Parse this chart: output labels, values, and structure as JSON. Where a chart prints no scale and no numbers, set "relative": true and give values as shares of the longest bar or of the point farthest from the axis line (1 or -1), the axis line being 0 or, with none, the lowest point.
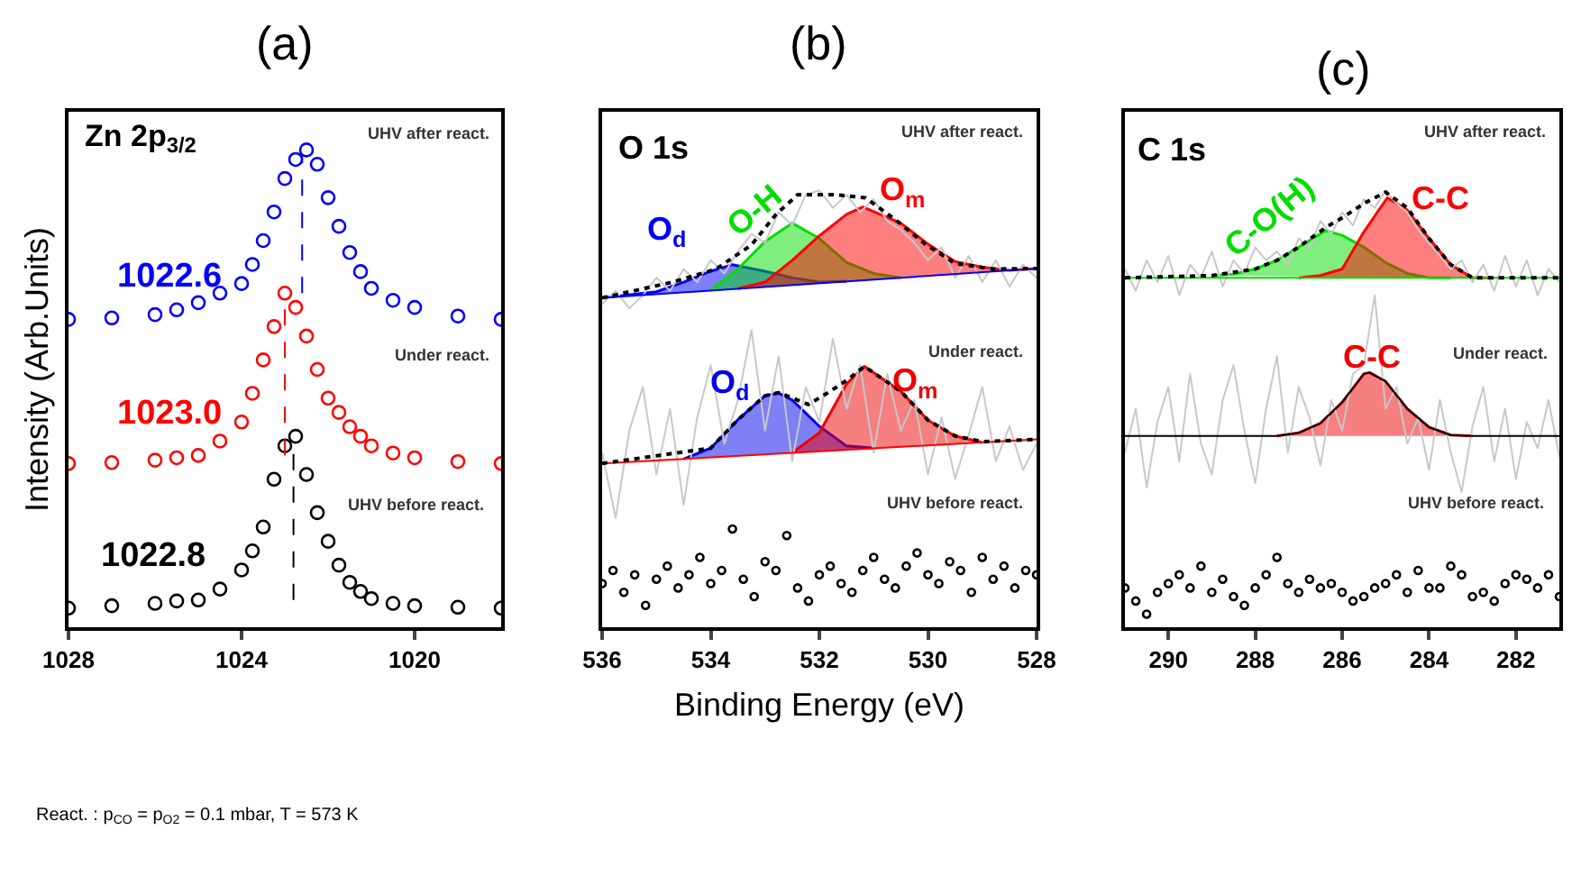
{
  "chart_data": [
    {
      "type": "scatter",
      "title": "(a)",
      "ylabel": "Intensity (Arb.Units)",
      "relative": true,
      "tick_labels": "x",
      "xlim": [
        1028,
        1018
      ],
      "xticks": [
        1028,
        1024,
        1020
      ],
      "series": [
        {
          "marker": "circle",
          "color": "#0000ff",
          "x": [
            1028,
            1027,
            1026,
            1025.5,
            1025,
            1024.5,
            1024,
            1023.75,
            1023.5,
            1023.25,
            1023,
            1022.75,
            1022.5,
            1022.25,
            1022,
            1021.75,
            1021.5,
            1021.25,
            1021,
            1020.5,
            1020,
            1019,
            1018
          ],
          "values": [
            0.645,
            0.648,
            0.655,
            0.665,
            0.68,
            0.7,
            0.72,
            0.76,
            0.81,
            0.87,
            0.94,
            0.98,
            1.0,
            0.97,
            0.9,
            0.84,
            0.785,
            0.745,
            0.71,
            0.685,
            0.67,
            0.652,
            0.645
          ]
        },
        {
          "marker": "circle",
          "color": "#ff0000",
          "x": [
            1028,
            1027,
            1026,
            1025.5,
            1025,
            1024.5,
            1024,
            1023.75,
            1023.5,
            1023.25,
            1023,
            1022.75,
            1022.5,
            1022.25,
            1022,
            1021.75,
            1021.5,
            1021.25,
            1021,
            1020.5,
            1020,
            1019,
            1018
          ],
          "values": [
            0.343,
            0.345,
            0.35,
            0.355,
            0.36,
            0.39,
            0.43,
            0.49,
            0.56,
            0.63,
            0.7,
            0.67,
            0.61,
            0.54,
            0.48,
            0.45,
            0.42,
            0.4,
            0.38,
            0.365,
            0.355,
            0.347,
            0.343
          ]
        },
        {
          "marker": "circle",
          "color": "#000000",
          "x": [
            1028,
            1027,
            1026,
            1025.5,
            1025,
            1024.5,
            1024,
            1023.75,
            1023.5,
            1023.25,
            1023,
            1022.75,
            1022.5,
            1022.25,
            1022,
            1021.75,
            1021.5,
            1021.25,
            1021,
            1020.5,
            1020,
            1019,
            1018
          ],
          "values": [
            0.04,
            0.045,
            0.05,
            0.055,
            0.057,
            0.08,
            0.12,
            0.16,
            0.21,
            0.31,
            0.38,
            0.4,
            0.32,
            0.24,
            0.18,
            0.13,
            0.094,
            0.075,
            0.06,
            0.05,
            0.045,
            0.042,
            0.04
          ]
        },
        {
          "type": "line",
          "line_style": "dashed",
          "color": "#0000ff",
          "x": [
            1022.6,
            1022.6
          ],
          "values": [
            0.7,
            0.99
          ]
        },
        {
          "type": "line",
          "line_style": "dashed",
          "color": "#ff0000",
          "x": [
            1023.0,
            1023.0
          ],
          "values": [
            0.36,
            0.7
          ]
        },
        {
          "type": "line",
          "line_style": "dashed",
          "color": "#000000",
          "x": [
            1022.8,
            1022.8
          ],
          "values": [
            0.057,
            0.39
          ]
        }
      ],
      "annotations": [
        "Zn 2p$_{3/2}$",
        "UHV after react.",
        "1022.6",
        "Under react.",
        "1023.0",
        "UHV before react.",
        "1022.8",
        "React. : p$_{CO}$ = p$_{O2}$ = 0.1 mbar, T = 573 K"
      ]
    },
    {
      "type": "line",
      "title": "(b)",
      "xlabel": "Binding Energy (eV)",
      "relative": true,
      "tick_labels": "x",
      "xlim": [
        536,
        528
      ],
      "xticks": [
        536,
        534,
        532,
        530,
        528
      ],
      "series": [
        {
          "type": "area",
          "color": "#0000ff",
          "x": [
            536,
            535,
            534.5,
            534,
            533.6,
            533,
            532.5,
            532,
            531.5
          ],
          "values": [
            0.754,
            0.768,
            0.79,
            0.815,
            0.83,
            0.815,
            0.8,
            0.79,
            0.792
          ]
        },
        {
          "type": "area",
          "color": "#00dd00",
          "x": [
            534,
            533.5,
            533,
            532.5,
            532,
            531.5,
            531,
            530.5
          ],
          "values": [
            0.771,
            0.82,
            0.883,
            0.925,
            0.89,
            0.835,
            0.81,
            0.8
          ]
        },
        {
          "type": "area",
          "color": "#ff0000",
          "x": [
            533.5,
            533,
            532.5,
            532,
            531.5,
            531.2,
            530.5,
            530,
            529.5,
            529,
            528.5,
            528
          ],
          "values": [
            0.775,
            0.79,
            0.84,
            0.896,
            0.945,
            0.962,
            0.925,
            0.877,
            0.837,
            0.824,
            0.817,
            0.821
          ]
        },
        {
          "type": "area",
          "color": "#0000ee",
          "x": [
            534.5,
            534,
            533.5,
            533,
            532.75,
            532.5,
            532,
            531.5,
            531
          ],
          "values": [
            0.385,
            0.41,
            0.475,
            0.53,
            0.536,
            0.52,
            0.46,
            0.415,
            0.41
          ]
        },
        {
          "type": "area",
          "color": "#ee0000",
          "x": [
            532.5,
            532,
            531.5,
            531.17,
            530.5,
            530,
            529.5,
            529
          ],
          "values": [
            0.399,
            0.445,
            0.557,
            0.597,
            0.54,
            0.474,
            0.438,
            0.423
          ]
        },
        {
          "color": "#c8c8c8",
          "x": [
            536,
            535.75,
            535.5,
            535.25,
            535,
            534.75,
            534.5,
            534.25,
            534,
            533.75,
            533.5,
            533.25,
            533,
            532.75,
            532.5,
            532.25,
            532,
            531.75,
            531.5,
            531.25,
            531,
            530.75,
            530.5,
            530.25,
            530,
            529.75,
            529.5,
            529.25,
            529,
            528.75,
            528.5,
            528.25,
            528
          ],
          "values": [
            0.74,
            0.77,
            0.73,
            0.76,
            0.8,
            0.77,
            0.82,
            0.79,
            0.84,
            0.81,
            0.86,
            0.9,
            0.88,
            0.95,
            0.92,
            0.99,
            1.0,
            0.96,
            0.99,
            0.95,
            0.98,
            0.93,
            0.91,
            0.88,
            0.84,
            0.87,
            0.8,
            0.85,
            0.79,
            0.84,
            0.78,
            0.83,
            0.8
          ]
        },
        {
          "color": "#c8c8c8",
          "x": [
            536,
            535.75,
            535.5,
            535.25,
            535,
            534.75,
            534.5,
            534.25,
            534,
            533.75,
            533.5,
            533.25,
            533,
            532.75,
            532.5,
            532.25,
            532,
            531.75,
            531.5,
            531.25,
            531,
            530.75,
            530.5,
            530.25,
            530,
            529.75,
            529.5,
            529.25,
            529,
            528.75,
            528.5,
            528.25,
            528
          ],
          "values": [
            0.4,
            0.25,
            0.45,
            0.55,
            0.35,
            0.5,
            0.28,
            0.48,
            0.6,
            0.42,
            0.52,
            0.68,
            0.45,
            0.62,
            0.38,
            0.55,
            0.47,
            0.66,
            0.5,
            0.6,
            0.4,
            0.58,
            0.45,
            0.52,
            0.35,
            0.48,
            0.34,
            0.44,
            0.55,
            0.38,
            0.46,
            0.36,
            0.42
          ]
        },
        {
          "color": "#0000ff",
          "x": [
            536,
            528
          ],
          "values": [
            0.754,
            0.821
          ]
        },
        {
          "color": "#ff0000",
          "x": [
            536,
            528
          ],
          "values": [
            0.375,
            0.43
          ]
        },
        {
          "line_style": "dotted",
          "color": "#000000",
          "x": [
            536,
            534.7,
            533.9,
            533.25,
            532.8,
            532.4,
            531.7,
            531.15,
            530.6,
            530.05,
            529.5,
            528.8,
            528
          ],
          "values": [
            0.754,
            0.79,
            0.82,
            0.875,
            0.945,
            0.99,
            0.99,
            0.983,
            0.933,
            0.877,
            0.833,
            0.82,
            0.821
          ]
        },
        {
          "line_style": "dotted",
          "color": "#000000",
          "x": [
            536,
            534,
            533.5,
            533,
            532.75,
            532.5,
            532.2,
            531.8,
            531.5,
            531.17,
            530.5,
            530,
            529.5,
            529,
            528
          ],
          "values": [
            0.375,
            0.41,
            0.475,
            0.53,
            0.537,
            0.525,
            0.51,
            0.54,
            0.565,
            0.597,
            0.54,
            0.474,
            0.438,
            0.425,
            0.43
          ]
        },
        {
          "type": "scatter",
          "marker": "circle",
          "color": "#000000",
          "x": [
            536,
            535.8,
            535.6,
            535.4,
            535.2,
            535,
            534.8,
            534.6,
            534.4,
            534.2,
            534,
            533.8,
            533.6,
            533.4,
            533.2,
            533,
            532.8,
            532.6,
            532.4,
            532.2,
            532,
            531.8,
            531.6,
            531.4,
            531.2,
            531,
            530.8,
            530.6,
            530.4,
            530.2,
            530,
            529.8,
            529.6,
            529.4,
            529.2,
            529,
            528.8,
            528.6,
            528.4,
            528.2,
            528
          ],
          "values": [
            0.1,
            0.13,
            0.08,
            0.12,
            0.05,
            0.11,
            0.14,
            0.09,
            0.12,
            0.16,
            0.1,
            0.13,
            0.225,
            0.11,
            0.07,
            0.15,
            0.13,
            0.21,
            0.09,
            0.06,
            0.12,
            0.14,
            0.1,
            0.08,
            0.13,
            0.16,
            0.11,
            0.09,
            0.14,
            0.17,
            0.12,
            0.1,
            0.15,
            0.13,
            0.08,
            0.16,
            0.11,
            0.14,
            0.09,
            0.13,
            0.12
          ]
        }
      ],
      "annotations": [
        "O 1s",
        "UHV after react.",
        "O$_{d}$",
        "O-H",
        "O$_{m}$",
        "Under react.",
        "O$_{d}$",
        "O$_{m}$",
        "UHV before react."
      ]
    },
    {
      "type": "line",
      "title": "(c)",
      "relative": true,
      "tick_labels": "x",
      "xlim": [
        291,
        281
      ],
      "xticks": [
        290,
        288,
        286,
        284,
        282
      ],
      "series": [
        {
          "type": "area",
          "color": "#00dd00",
          "x": [
            289,
            288.5,
            288,
            287.5,
            287,
            286.38,
            286,
            285.5,
            285,
            284.5,
            284,
            283.5
          ],
          "values": [
            0.805,
            0.808,
            0.82,
            0.84,
            0.87,
            0.908,
            0.897,
            0.87,
            0.835,
            0.81,
            0.8,
            0.8
          ]
        },
        {
          "type": "area",
          "color": "#ff0000",
          "x": [
            287,
            286.5,
            286,
            285.5,
            284.96,
            284.5,
            284,
            283.5,
            283,
            282.5
          ],
          "values": [
            0.8,
            0.805,
            0.82,
            0.905,
            0.983,
            0.955,
            0.89,
            0.83,
            0.8,
            0.8
          ]
        },
        {
          "type": "area",
          "color": "#ee0000",
          "x": [
            287.5,
            287,
            286.5,
            286,
            285.5,
            285.37,
            285,
            284.5,
            284,
            283.5,
            283
          ],
          "values": [
            0.438,
            0.445,
            0.467,
            0.515,
            0.58,
            0.583,
            0.563,
            0.5,
            0.458,
            0.44,
            0.438
          ]
        },
        {
          "color": "#c8c8c8",
          "x": [
            291,
            290.75,
            290.5,
            290.25,
            290,
            289.75,
            289.5,
            289.25,
            289,
            288.75,
            288.5,
            288.25,
            288,
            287.75,
            287.5,
            287.25,
            287,
            286.75,
            286.5,
            286.25,
            286,
            285.75,
            285.5,
            285.25,
            285,
            284.75,
            284.5,
            284.25,
            284,
            283.75,
            283.5,
            283.25,
            283,
            282.75,
            282.5,
            282.25,
            282,
            281.75,
            281.5,
            281.25,
            281
          ],
          "values": [
            0.82,
            0.77,
            0.84,
            0.79,
            0.85,
            0.76,
            0.83,
            0.8,
            0.86,
            0.78,
            0.84,
            0.81,
            0.87,
            0.84,
            0.86,
            0.83,
            0.89,
            0.87,
            0.93,
            0.9,
            0.95,
            0.92,
            0.98,
            0.96,
            1.0,
            0.97,
            0.95,
            0.91,
            0.88,
            0.85,
            0.82,
            0.84,
            0.79,
            0.83,
            0.77,
            0.85,
            0.78,
            0.84,
            0.76,
            0.82,
            0.79
          ]
        },
        {
          "color": "#c8c8c8",
          "x": [
            291,
            290.75,
            290.5,
            290.25,
            290,
            289.75,
            289.5,
            289.25,
            289,
            288.75,
            288.5,
            288.25,
            288,
            287.75,
            287.5,
            287.25,
            287,
            286.75,
            286.5,
            286.25,
            286,
            285.75,
            285.5,
            285.25,
            285,
            284.75,
            284.5,
            284.25,
            284,
            283.75,
            283.5,
            283.25,
            283,
            282.75,
            282.5,
            282.25,
            282,
            281.75,
            281.5,
            281.25,
            281
          ],
          "values": [
            0.4,
            0.5,
            0.32,
            0.47,
            0.55,
            0.38,
            0.58,
            0.42,
            0.35,
            0.52,
            0.6,
            0.45,
            0.33,
            0.5,
            0.62,
            0.4,
            0.55,
            0.48,
            0.37,
            0.52,
            0.45,
            0.58,
            0.6,
            0.76,
            0.5,
            0.55,
            0.42,
            0.48,
            0.36,
            0.52,
            0.4,
            0.31,
            0.46,
            0.55,
            0.38,
            0.5,
            0.34,
            0.47,
            0.41,
            0.52,
            0.39
          ]
        },
        {
          "color": "#00dd00",
          "x": [
            291,
            281
          ],
          "values": [
            0.8,
            0.8
          ]
        },
        {
          "line_style": "dotted",
          "color": "#000000",
          "x": [
            291,
            289,
            288,
            287.5,
            287,
            286.38,
            286,
            285.5,
            285,
            284.5,
            284,
            283.5,
            283,
            281
          ],
          "values": [
            0.8,
            0.805,
            0.82,
            0.84,
            0.87,
            0.915,
            0.937,
            0.97,
            0.996,
            0.96,
            0.89,
            0.83,
            0.8,
            0.8
          ]
        },
        {
          "line_style": "solid",
          "color": "#000000",
          "x": [
            291,
            287.5,
            287,
            286.5,
            286,
            285.5,
            285.37,
            285,
            284.5,
            284,
            283.5,
            283,
            281
          ],
          "values": [
            0.438,
            0.438,
            0.445,
            0.467,
            0.515,
            0.58,
            0.583,
            0.563,
            0.5,
            0.458,
            0.44,
            0.438,
            0.438
          ]
        },
        {
          "type": "scatter",
          "marker": "circle",
          "color": "#000000",
          "x": [
            291,
            290.75,
            290.5,
            290.25,
            290,
            289.75,
            289.5,
            289.25,
            289,
            288.75,
            288.5,
            288.25,
            288,
            287.75,
            287.5,
            287.25,
            287,
            286.75,
            286.5,
            286.25,
            286,
            285.75,
            285.5,
            285.25,
            285,
            284.75,
            284.5,
            284.25,
            284,
            283.75,
            283.5,
            283.25,
            283,
            282.75,
            282.5,
            282.25,
            282,
            281.75,
            281.5,
            281.25,
            281
          ],
          "values": [
            0.09,
            0.06,
            0.03,
            0.08,
            0.1,
            0.12,
            0.09,
            0.14,
            0.08,
            0.11,
            0.07,
            0.05,
            0.09,
            0.12,
            0.16,
            0.1,
            0.08,
            0.11,
            0.09,
            0.1,
            0.08,
            0.06,
            0.07,
            0.09,
            0.1,
            0.12,
            0.08,
            0.13,
            0.09,
            0.09,
            0.14,
            0.12,
            0.07,
            0.08,
            0.06,
            0.1,
            0.12,
            0.11,
            0.09,
            0.12,
            0.07
          ]
        }
      ],
      "annotations": [
        "C 1s",
        "UHV after react.",
        "C-O(H)",
        "C-C",
        "Under react.",
        "C-C",
        "UHV before react."
      ]
    }
  ]
}
